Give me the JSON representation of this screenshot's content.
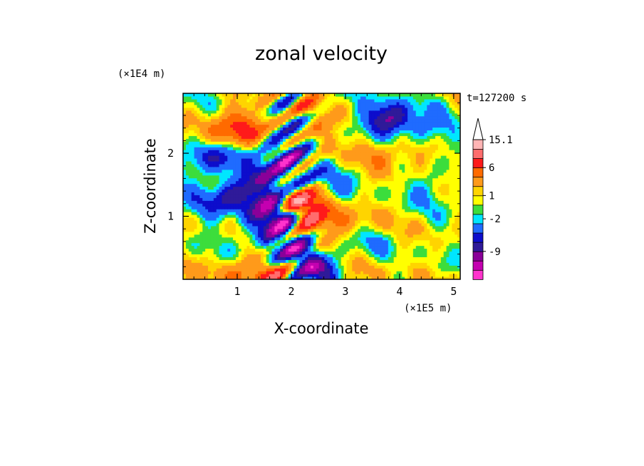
{
  "chart_data": {
    "type": "heatmap",
    "title": "zonal velocity",
    "xlabel": "X-coordinate",
    "ylabel": "Z-coordinate",
    "x_multiplier": "(×1E5 m)",
    "y_multiplier": "(×1E4 m)",
    "time_label": "t=127200 s",
    "xlim": [
      0,
      5.12
    ],
    "ylim": [
      0,
      2.95
    ],
    "x_ticks": [
      1,
      2,
      3,
      4,
      5
    ],
    "y_ticks": [
      1,
      2
    ],
    "grid": false,
    "colorbar": {
      "labels": [
        {
          "text": "15.1",
          "value": 15.1
        },
        {
          "text": "6",
          "value": 6
        },
        {
          "text": "1",
          "value": 1
        },
        {
          "text": "-2",
          "value": -2
        },
        {
          "text": "-9",
          "value": -9
        }
      ],
      "colors": [
        "#ff33cc",
        "#c400b0",
        "#8a0099",
        "#2f1a99",
        "#0d0dcc",
        "#1f6bff",
        "#00e6ff",
        "#3cdd3c",
        "#ffff00",
        "#ffd400",
        "#ff9a1a",
        "#ff6a00",
        "#ff1a1a",
        "#ff6d6d",
        "#ffb4b4"
      ],
      "over_color": "#ffffff"
    },
    "features": [
      {
        "x": 2.1,
        "z": 1.2,
        "u": 8
      },
      {
        "x": 2.05,
        "z": 0.7,
        "u": 5
      },
      {
        "x": 2.3,
        "z": 1.0,
        "u": 4
      },
      {
        "x": 3.0,
        "z": 0.9,
        "u": 3
      },
      {
        "x": 0.8,
        "z": 2.3,
        "u": 5
      },
      {
        "x": 1.2,
        "z": 2.5,
        "u": 3
      },
      {
        "x": 2.4,
        "z": 2.3,
        "u": 3
      },
      {
        "x": 3.6,
        "z": 2.0,
        "u": 4
      },
      {
        "x": 4.4,
        "z": 2.1,
        "u": 3
      },
      {
        "x": 1.8,
        "z": 0.1,
        "u": 5
      },
      {
        "x": 1.1,
        "z": 0.1,
        "u": 4
      },
      {
        "x": 3.2,
        "z": 0.1,
        "u": 2
      },
      {
        "x": 1.8,
        "z": 1.1,
        "u": -9
      },
      {
        "x": 1.95,
        "z": 0.6,
        "u": -8
      },
      {
        "x": 2.2,
        "z": 0.3,
        "u": -6
      },
      {
        "x": 1.5,
        "z": 0.8,
        "u": -5
      },
      {
        "x": 1.7,
        "z": 1.6,
        "u": -6
      },
      {
        "x": 1.1,
        "z": 1.4,
        "u": -6
      },
      {
        "x": 0.6,
        "z": 1.2,
        "u": -4
      },
      {
        "x": 0.6,
        "z": 1.95,
        "u": -5
      },
      {
        "x": 1.9,
        "z": 2.05,
        "u": -7
      },
      {
        "x": 3.8,
        "z": 2.55,
        "u": -9
      },
      {
        "x": 4.5,
        "z": 2.3,
        "u": -5
      },
      {
        "x": 3.0,
        "z": 1.7,
        "u": -3
      },
      {
        "x": 4.6,
        "z": 1.5,
        "u": -2.5
      },
      {
        "x": 2.7,
        "z": 0.15,
        "u": -5
      },
      {
        "x": 0.2,
        "z": 1.8,
        "u": -2.5
      },
      {
        "x": 3.5,
        "z": 0.6,
        "u": -1.5
      }
    ]
  }
}
